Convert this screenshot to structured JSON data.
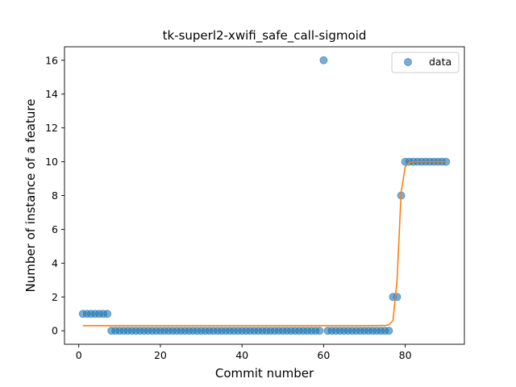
{
  "chart_data": {
    "type": "scatter",
    "title": "tk-superl2-xwifi_safe_call-sigmoid",
    "xlabel": "Commit number",
    "ylabel": "Number of instance of a feature",
    "xlim": [
      -3.5,
      94.5
    ],
    "ylim": [
      -0.8,
      16.8
    ],
    "xticks": [
      0,
      20,
      40,
      60,
      80
    ],
    "yticks": [
      0,
      2,
      4,
      6,
      8,
      10,
      12,
      14,
      16
    ],
    "grid": false,
    "legend_position": "top-right",
    "series": [
      {
        "name": "data",
        "kind": "scatter",
        "color": "#1f77b4",
        "x": [
          1,
          2,
          3,
          4,
          5,
          6,
          7,
          8,
          9,
          10,
          11,
          12,
          13,
          14,
          15,
          16,
          17,
          18,
          19,
          20,
          21,
          22,
          23,
          24,
          25,
          26,
          27,
          28,
          29,
          30,
          31,
          32,
          33,
          34,
          35,
          36,
          37,
          38,
          39,
          40,
          41,
          42,
          43,
          44,
          45,
          46,
          47,
          48,
          49,
          50,
          51,
          52,
          53,
          54,
          55,
          56,
          57,
          58,
          59,
          60,
          61,
          62,
          63,
          64,
          65,
          66,
          67,
          68,
          69,
          70,
          71,
          72,
          73,
          74,
          75,
          76,
          77,
          78,
          79,
          80,
          81,
          82,
          83,
          84,
          85,
          86,
          87,
          88,
          89,
          90
        ],
        "y": [
          1,
          1,
          1,
          1,
          1,
          1,
          1,
          0,
          0,
          0,
          0,
          0,
          0,
          0,
          0,
          0,
          0,
          0,
          0,
          0,
          0,
          0,
          0,
          0,
          0,
          0,
          0,
          0,
          0,
          0,
          0,
          0,
          0,
          0,
          0,
          0,
          0,
          0,
          0,
          0,
          0,
          0,
          0,
          0,
          0,
          0,
          0,
          0,
          0,
          0,
          0,
          0,
          0,
          0,
          0,
          0,
          0,
          0,
          0,
          16,
          0,
          0,
          0,
          0,
          0,
          0,
          0,
          0,
          0,
          0,
          0,
          0,
          0,
          0,
          0,
          0,
          2,
          2,
          8,
          10,
          10,
          10,
          10,
          10,
          10,
          10,
          10,
          10,
          10,
          10
        ]
      },
      {
        "kind": "line",
        "color": "#ff7f0e",
        "x": [
          1,
          10,
          20,
          30,
          40,
          50,
          60,
          70,
          75,
          76,
          77,
          78,
          79,
          80,
          81,
          82,
          85,
          90
        ],
        "y": [
          0.3,
          0.3,
          0.3,
          0.3,
          0.3,
          0.3,
          0.3,
          0.3,
          0.31,
          0.35,
          0.6,
          3.0,
          8.2,
          9.7,
          9.95,
          10.0,
          10.0,
          10.0
        ]
      }
    ]
  }
}
